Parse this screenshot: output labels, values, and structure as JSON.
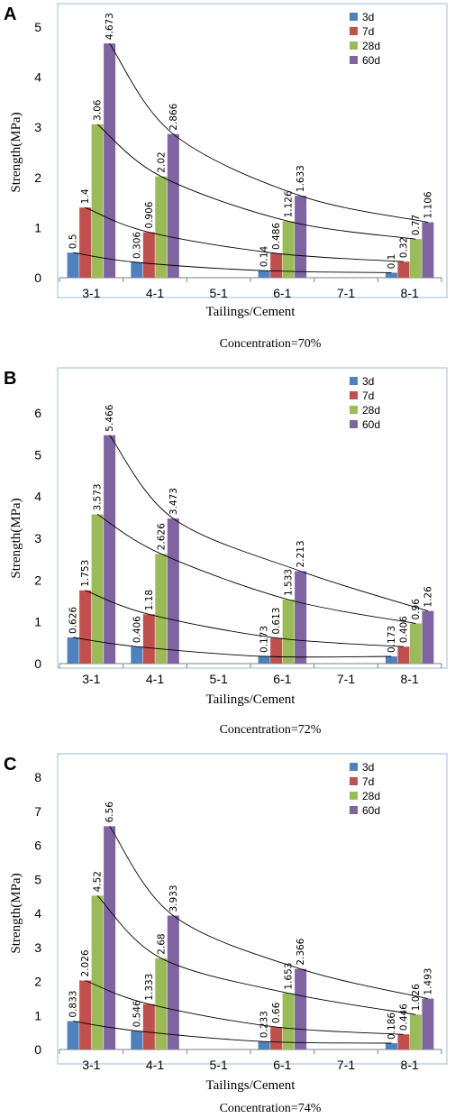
{
  "colors": {
    "3d": "#4f81bd",
    "7d": "#c0504d",
    "28d": "#9bbb59",
    "60d": "#8064a2"
  },
  "chart_data": [
    {
      "panel": "A",
      "type": "bar",
      "categories": [
        "3-1",
        "4-1",
        "5-1",
        "6-1",
        "7-1",
        "8-1"
      ],
      "series": [
        {
          "name": "3d",
          "values": [
            0.5,
            0.306,
            null,
            0.14,
            null,
            0.1
          ],
          "labels": [
            "0.5",
            "0.306",
            "",
            "0.14",
            "",
            "0.1"
          ]
        },
        {
          "name": "7d",
          "values": [
            1.4,
            0.906,
            null,
            0.486,
            null,
            0.32
          ],
          "labels": [
            "1.4",
            "0.906",
            "",
            "0.486",
            "",
            "0.32"
          ]
        },
        {
          "name": "28d",
          "values": [
            3.06,
            2.02,
            null,
            1.126,
            null,
            0.77
          ],
          "labels": [
            "3.06",
            "2.02",
            "",
            "1.126",
            "",
            "0.77"
          ]
        },
        {
          "name": "60d",
          "values": [
            4.673,
            2.866,
            null,
            1.633,
            null,
            1.106
          ],
          "labels": [
            "4.673",
            "2.866",
            "",
            "1.633",
            "",
            "1.106"
          ]
        }
      ],
      "ylim": [
        0,
        5
      ],
      "yticks": [
        "0",
        "1",
        "2",
        "3",
        "4",
        "5"
      ],
      "xlabel": "Tailings/Cement",
      "ylabel": "Strength(MPa)",
      "note": "Concentration=70%",
      "legend": "top-right",
      "trendlines": true,
      "grid": false
    },
    {
      "panel": "B",
      "type": "bar",
      "categories": [
        "3-1",
        "4-1",
        "5-1",
        "6-1",
        "7-1",
        "8-1"
      ],
      "series": [
        {
          "name": "3d",
          "values": [
            0.626,
            0.406,
            null,
            0.173,
            null,
            0.173
          ],
          "labels": [
            "0.626",
            "0.406",
            "",
            "0.173",
            "",
            "0.173"
          ]
        },
        {
          "name": "7d",
          "values": [
            1.753,
            1.18,
            null,
            0.613,
            null,
            0.406
          ],
          "labels": [
            "1.753",
            "1.18",
            "",
            "0.613",
            "",
            "0.406"
          ]
        },
        {
          "name": "28d",
          "values": [
            3.573,
            2.626,
            null,
            1.533,
            null,
            0.96
          ],
          "labels": [
            "3.573",
            "2.626",
            "",
            "1.533",
            "",
            "0.96"
          ]
        },
        {
          "name": "60d",
          "values": [
            5.466,
            3.473,
            null,
            2.213,
            null,
            1.26
          ],
          "labels": [
            "5.466",
            "3.473",
            "",
            "2.213",
            "",
            "1.26"
          ]
        }
      ],
      "ylim": [
        0,
        6
      ],
      "yticks": [
        "0",
        "1",
        "2",
        "3",
        "4",
        "5",
        "6"
      ],
      "xlabel": "Tailings/Cement",
      "ylabel": "Strength(MPa)",
      "note": "Concentration=72%",
      "legend": "top-right",
      "trendlines": true,
      "grid": false
    },
    {
      "panel": "C",
      "type": "bar",
      "categories": [
        "3-1",
        "4-1",
        "5-1",
        "6-1",
        "7-1",
        "8-1"
      ],
      "series": [
        {
          "name": "3d",
          "values": [
            0.833,
            0.546,
            null,
            0.233,
            null,
            0.186
          ],
          "labels": [
            "0.833",
            "0.546",
            "",
            "0.233",
            "",
            "0.186"
          ]
        },
        {
          "name": "7d",
          "values": [
            2.026,
            1.333,
            null,
            0.66,
            null,
            0.446
          ],
          "labels": [
            "2.026",
            "1.333",
            "",
            "0.66",
            "",
            "0.446"
          ]
        },
        {
          "name": "28d",
          "values": [
            4.52,
            2.68,
            null,
            1.653,
            null,
            1.026
          ],
          "labels": [
            "4.52",
            "2.68",
            "",
            "1.653",
            "",
            "1.026"
          ]
        },
        {
          "name": "60d",
          "values": [
            6.56,
            3.933,
            null,
            2.366,
            null,
            1.493
          ],
          "labels": [
            "6.56",
            "3.933",
            "",
            "2.366",
            "",
            "1.493"
          ]
        }
      ],
      "ylim": [
        0,
        8
      ],
      "yticks": [
        "0",
        "1",
        "2",
        "3",
        "4",
        "5",
        "6",
        "7",
        "8"
      ],
      "xlabel": "Tailings/Cement",
      "ylabel": "Strength(MPa)",
      "note": "Concentration=74%",
      "legend": "top-right",
      "trendlines": true,
      "grid": false
    }
  ]
}
